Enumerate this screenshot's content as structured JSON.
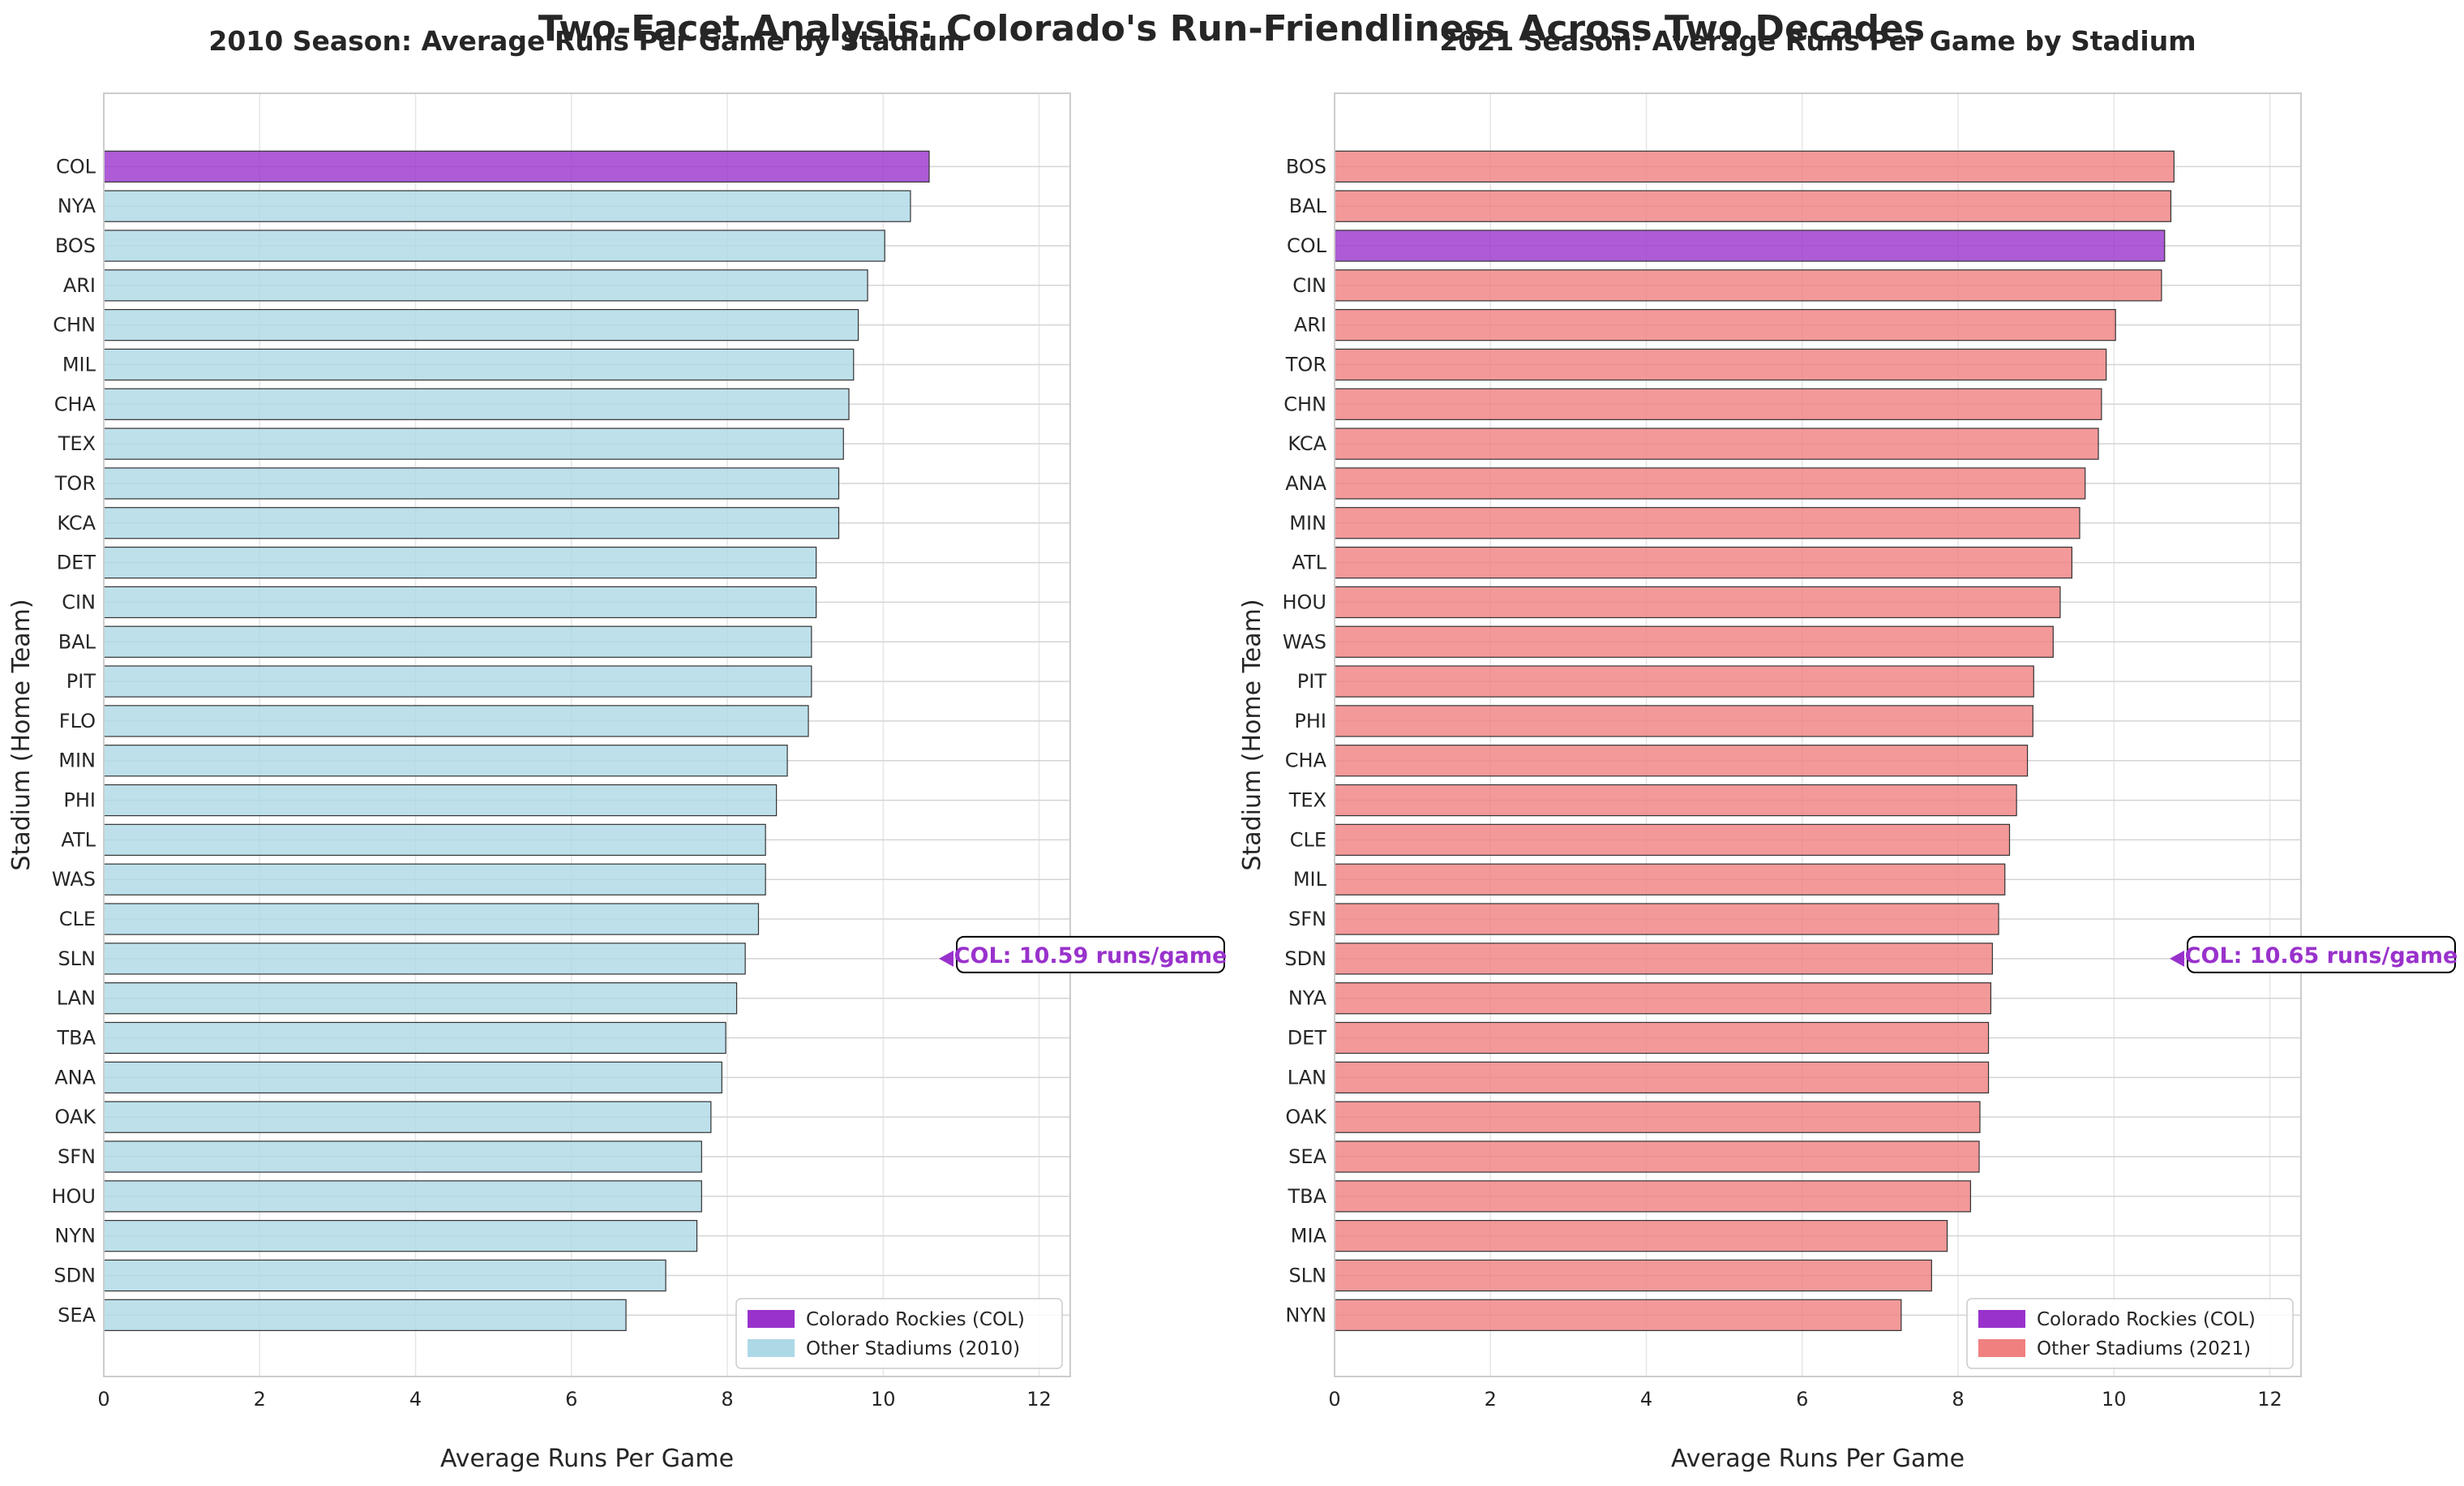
{
  "title": "Two-Facet Analysis: Colorado's Run-Friendliness Across Two Decades",
  "colors": {
    "highlight": "#9932CC",
    "panel1": "#ADD8E6",
    "panel2": "#F08080",
    "bar_edge": "#333333",
    "grid": "#e6e6e6",
    "spine": "#cccccc",
    "text": "#262626"
  },
  "chart_data": [
    {
      "type": "bar",
      "orientation": "horizontal",
      "title": "2010 Season: Average Runs Per Game by Stadium",
      "xlabel": "Average Runs Per Game",
      "ylabel": "Stadium (Home Team)",
      "xlim": [
        0,
        12.4
      ],
      "xticks": [
        0,
        2,
        4,
        6,
        8,
        10,
        12
      ],
      "grid": true,
      "legend_position": "lower-right",
      "highlight": "COL",
      "legend": [
        "Colorado Rockies (COL)",
        "Other Stadiums (2010)"
      ],
      "annotation": "COL: 10.59 runs/game",
      "categories": [
        "COL",
        "NYA",
        "BOS",
        "ARI",
        "CHN",
        "MIL",
        "CHA",
        "TEX",
        "TOR",
        "KCA",
        "DET",
        "CIN",
        "BAL",
        "PIT",
        "FLO",
        "MIN",
        "PHI",
        "ATL",
        "WAS",
        "CLE",
        "SLN",
        "LAN",
        "TBA",
        "ANA",
        "OAK",
        "SFN",
        "HOU",
        "NYN",
        "SDN",
        "SEA"
      ],
      "values": [
        10.59,
        10.35,
        10.02,
        9.8,
        9.68,
        9.62,
        9.56,
        9.49,
        9.43,
        9.43,
        9.14,
        9.14,
        9.08,
        9.08,
        9.04,
        8.77,
        8.63,
        8.49,
        8.49,
        8.4,
        8.23,
        8.12,
        7.98,
        7.93,
        7.79,
        7.67,
        7.67,
        7.61,
        7.21,
        6.7
      ]
    },
    {
      "type": "bar",
      "orientation": "horizontal",
      "title": "2021 Season: Average Runs Per Game by Stadium",
      "xlabel": "Average Runs Per Game",
      "ylabel": "Stadium (Home Team)",
      "xlim": [
        0,
        12.4
      ],
      "xticks": [
        0,
        2,
        4,
        6,
        8,
        10,
        12
      ],
      "grid": true,
      "legend_position": "lower-right",
      "highlight": "COL",
      "legend": [
        "Colorado Rockies (COL)",
        "Other Stadiums (2021)"
      ],
      "annotation": "COL: 10.65 runs/game",
      "categories": [
        "BOS",
        "BAL",
        "COL",
        "CIN",
        "ARI",
        "TOR",
        "CHN",
        "KCA",
        "ANA",
        "MIN",
        "ATL",
        "HOU",
        "WAS",
        "PIT",
        "PHI",
        "CHA",
        "TEX",
        "CLE",
        "MIL",
        "SFN",
        "SDN",
        "NYA",
        "DET",
        "LAN",
        "OAK",
        "SEA",
        "TBA",
        "MIA",
        "SLN",
        "NYN"
      ],
      "values": [
        10.77,
        10.73,
        10.65,
        10.61,
        10.02,
        9.9,
        9.84,
        9.8,
        9.63,
        9.56,
        9.46,
        9.31,
        9.22,
        8.97,
        8.96,
        8.89,
        8.75,
        8.66,
        8.6,
        8.52,
        8.44,
        8.42,
        8.39,
        8.39,
        8.28,
        8.27,
        8.16,
        7.86,
        7.66,
        7.27
      ]
    }
  ]
}
